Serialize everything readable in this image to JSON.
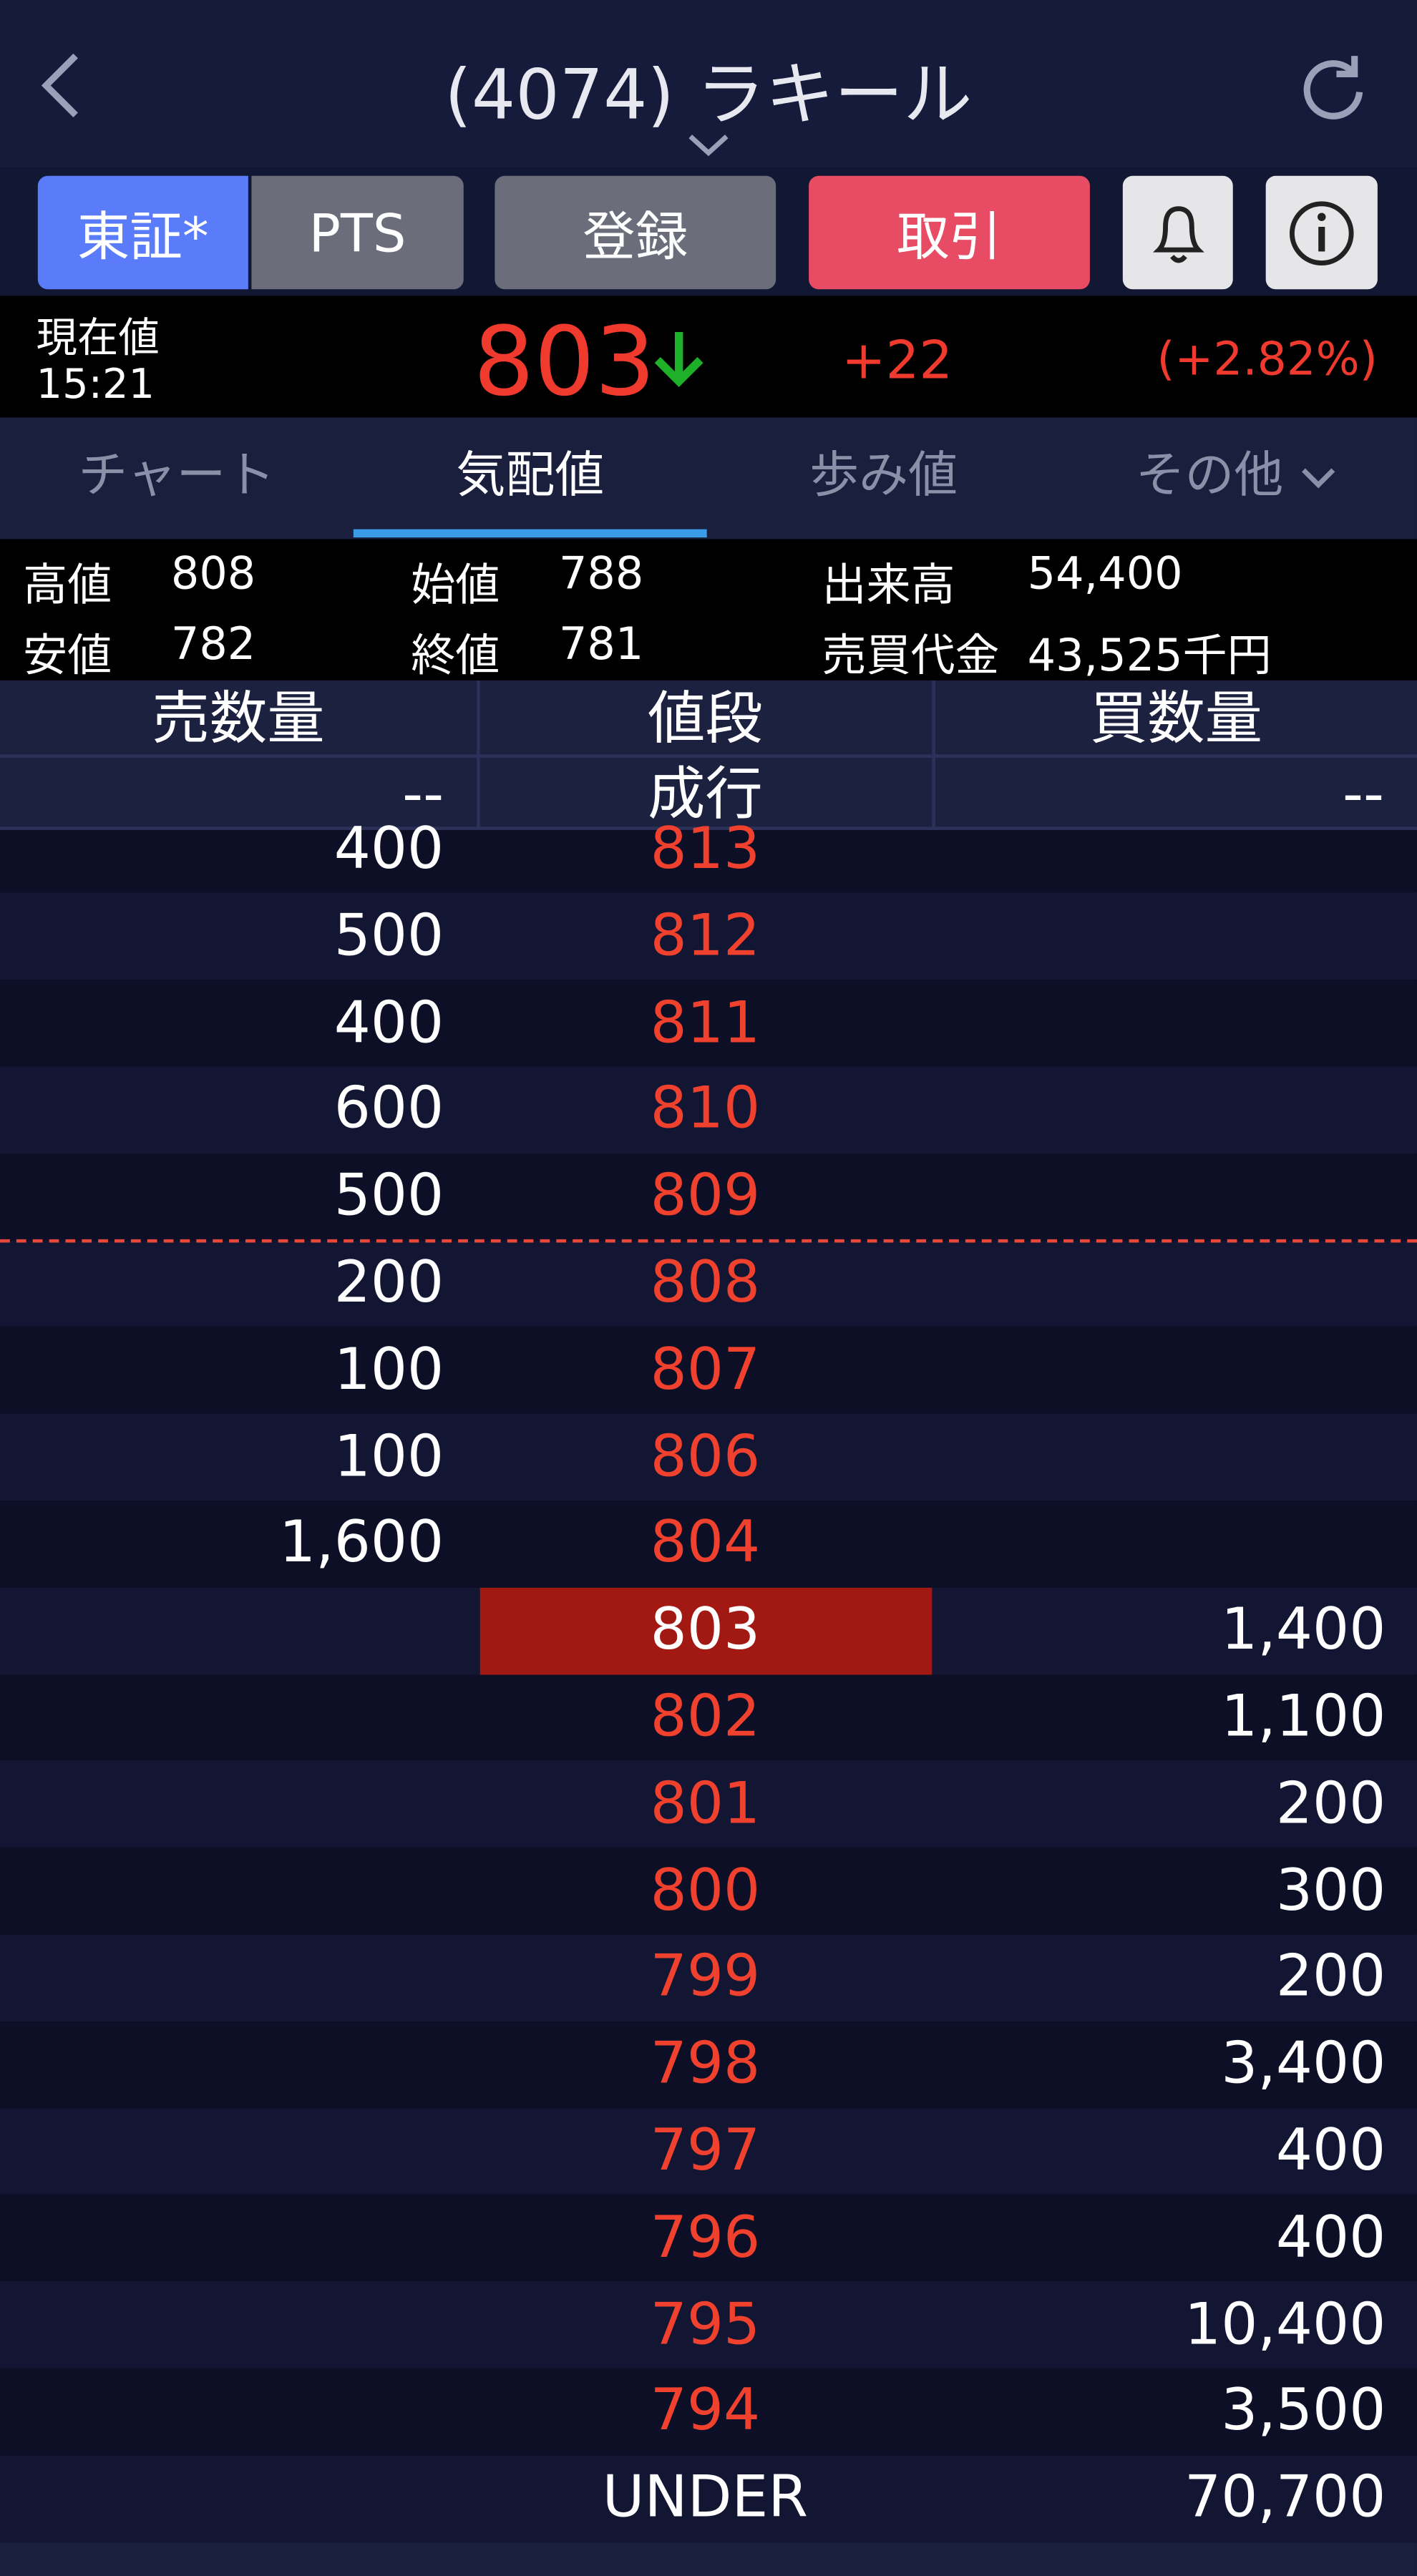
{
  "header": {
    "title": "(4074) ラキール"
  },
  "buttons": [
    "東証*",
    "PTS",
    "登録",
    "取引"
  ],
  "price": {
    "label": "現在値",
    "time": "15:21",
    "value": "803",
    "change": "+22",
    "change_pct": "(+2.82%)"
  },
  "tabs": [
    "チャート",
    "気配値",
    "歩み値",
    "その他"
  ],
  "stats": [
    [
      "高値",
      "808"
    ],
    [
      "始値",
      "788"
    ],
    [
      "出来高",
      "54,400"
    ],
    [
      "安値",
      "782"
    ],
    [
      "終値",
      "781"
    ],
    [
      "売買代金",
      "43,525千円"
    ]
  ],
  "board": {
    "headers": [
      "売数量",
      "値段",
      "買数量"
    ],
    "market": [
      "--",
      "成行",
      "--"
    ],
    "rows": [
      [
        "400",
        "813",
        null
      ],
      [
        "500",
        "812",
        null
      ],
      [
        "400",
        "811",
        null
      ],
      [
        "600",
        "810",
        null
      ],
      [
        "500",
        "809",
        null
      ],
      [
        "200",
        "808",
        null
      ],
      [
        "100",
        "807",
        null
      ],
      [
        "100",
        "806",
        null
      ],
      [
        "1,600",
        "804",
        null
      ],
      [
        null,
        "803",
        "1,400"
      ],
      [
        null,
        "802",
        "1,100"
      ],
      [
        null,
        "801",
        "200"
      ],
      [
        null,
        "800",
        "300"
      ],
      [
        null,
        "799",
        "200"
      ],
      [
        null,
        "798",
        "3,400"
      ],
      [
        null,
        "797",
        "400"
      ],
      [
        null,
        "796",
        "400"
      ],
      [
        null,
        "795",
        "10,400"
      ],
      [
        null,
        "794",
        "3,500"
      ]
    ],
    "under": [
      "UNDER",
      "70,700"
    ]
  }
}
